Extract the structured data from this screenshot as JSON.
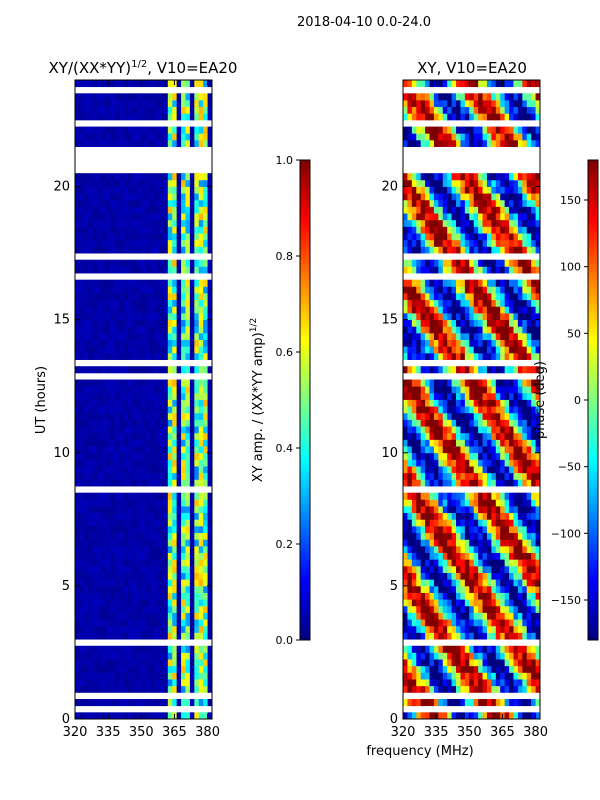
{
  "suptitle": "2018-04-10 0.0-24.0",
  "colors": {
    "jet": [
      "#00007f",
      "#0000ff",
      "#007fff",
      "#00ffff",
      "#7fff7f",
      "#ffff00",
      "#ff7f00",
      "#ff0000",
      "#7f0000"
    ],
    "background_masked": "#ffffff",
    "frame": "#000000"
  },
  "chart_data": [
    {
      "type": "heatmap",
      "title_main": "XY/(XX*YY)",
      "title_sup": "1/2",
      "title_tail": ", V10=EA20",
      "xlabel": "",
      "ylabel": "UT (hours)",
      "xlim": [
        320,
        382
      ],
      "ylim": [
        0,
        24
      ],
      "xticks": [
        "320",
        "335",
        "350",
        "365",
        "380"
      ],
      "xtick_values": [
        320,
        335,
        350,
        365,
        380
      ],
      "yticks": [
        "0",
        "5",
        "10",
        "15",
        "20"
      ],
      "ytick_values": [
        0,
        5,
        10,
        15,
        20
      ],
      "colorbar": {
        "label_main": "XY amp. / (XX*YY amp)",
        "label_sup": "1/2",
        "range": [
          0.0,
          1.0
        ],
        "ticks": [
          "0.0",
          "0.2",
          "0.4",
          "0.6",
          "0.8",
          "1.0"
        ],
        "tick_values": [
          0.0,
          0.2,
          0.4,
          0.6,
          0.8,
          1.0
        ]
      },
      "bright_bands_mhz": [
        [
          362,
          366
        ],
        [
          368,
          372
        ],
        [
          374,
          376
        ],
        [
          377,
          380
        ]
      ],
      "masked_hours": [
        [
          0.35,
          0.45
        ],
        [
          0.85,
          1.0
        ],
        [
          1.3,
          1.35
        ],
        [
          2.8,
          2.9
        ],
        [
          3.2,
          3.25
        ],
        [
          3.7,
          3.85
        ],
        [
          4.9,
          5.0
        ],
        [
          7.9,
          8.0
        ],
        [
          8.6,
          8.7
        ],
        [
          10.9,
          11.05
        ],
        [
          12.8,
          12.9
        ],
        [
          13.3,
          13.4
        ],
        [
          14.9,
          15.1
        ],
        [
          16.2,
          16.3
        ],
        [
          16.6,
          16.7
        ],
        [
          17.2,
          17.5
        ],
        [
          17.9,
          18.0
        ],
        [
          19.0,
          19.1
        ],
        [
          19.5,
          19.6
        ],
        [
          20.4,
          20.5
        ],
        [
          20.5,
          21.6
        ],
        [
          21.7,
          21.8
        ],
        [
          22.3,
          22.4
        ],
        [
          23.0,
          23.1
        ],
        [
          23.4,
          23.5
        ],
        [
          23.6,
          23.7
        ]
      ]
    },
    {
      "type": "heatmap",
      "title_main": "XY, V10=EA20",
      "xlabel": "frequency (MHz)",
      "ylabel": "",
      "xlim": [
        320,
        382
      ],
      "ylim": [
        0,
        24
      ],
      "xticks": [
        "320",
        "335",
        "350",
        "365",
        "380"
      ],
      "xtick_values": [
        320,
        335,
        350,
        365,
        380
      ],
      "yticks": [
        "0",
        "5",
        "10",
        "15",
        "20"
      ],
      "ytick_values": [
        0,
        5,
        10,
        15,
        20
      ],
      "colorbar": {
        "label_main": "phase (deg)",
        "range": [
          -180,
          180
        ],
        "ticks": [
          "−150",
          "−100",
          "−50",
          "0",
          "50",
          "100",
          "150"
        ],
        "tick_values": [
          -150,
          -100,
          -50,
          0,
          50,
          100,
          150
        ]
      },
      "masked_hours": [
        [
          0.35,
          0.45
        ],
        [
          0.85,
          1.0
        ],
        [
          1.3,
          1.35
        ],
        [
          2.8,
          2.9
        ],
        [
          3.2,
          3.25
        ],
        [
          3.7,
          3.85
        ],
        [
          4.9,
          5.0
        ],
        [
          7.9,
          8.0
        ],
        [
          8.6,
          8.7
        ],
        [
          10.9,
          11.05
        ],
        [
          12.8,
          12.9
        ],
        [
          13.3,
          13.4
        ],
        [
          14.9,
          15.1
        ],
        [
          16.2,
          16.3
        ],
        [
          16.6,
          16.7
        ],
        [
          17.2,
          17.5
        ],
        [
          17.9,
          18.0
        ],
        [
          19.0,
          19.1
        ],
        [
          19.5,
          19.6
        ],
        [
          20.4,
          20.5
        ],
        [
          20.5,
          21.6
        ],
        [
          21.7,
          21.8
        ],
        [
          22.3,
          22.4
        ],
        [
          23.0,
          23.1
        ],
        [
          23.4,
          23.5
        ],
        [
          23.6,
          23.7
        ]
      ]
    }
  ]
}
